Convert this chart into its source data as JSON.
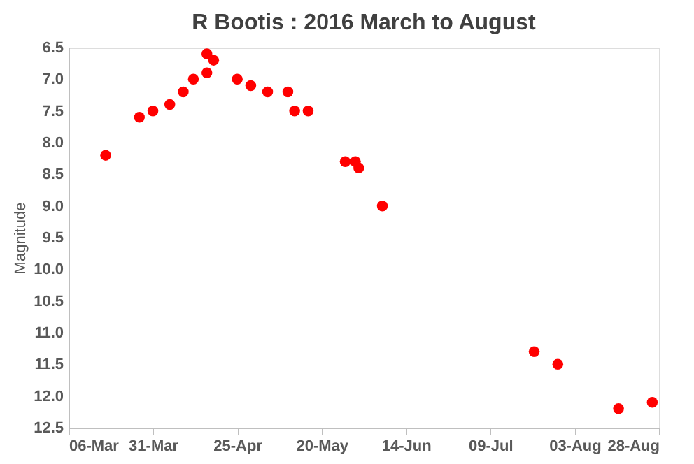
{
  "chart_data": {
    "type": "scatter",
    "title": "R Bootis : 2016 March to August",
    "ylabel": "Magnitude",
    "x": [
      "2016-03-17",
      "2016-03-27",
      "2016-03-31",
      "2016-04-05",
      "2016-04-09",
      "2016-04-12",
      "2016-04-16",
      "2016-04-16",
      "2016-04-18",
      "2016-04-25",
      "2016-04-29",
      "2016-05-04",
      "2016-05-10",
      "2016-05-12",
      "2016-05-16",
      "2016-05-27",
      "2016-05-30",
      "2016-05-31",
      "2016-06-07",
      "2016-07-22",
      "2016-07-29",
      "2016-08-16",
      "2016-08-26"
    ],
    "series": [
      {
        "color": "#ff0000",
        "values": [
          8.2,
          7.6,
          7.5,
          7.4,
          7.2,
          7.0,
          6.6,
          6.9,
          6.7,
          7.0,
          7.1,
          7.2,
          7.2,
          7.5,
          7.5,
          8.3,
          8.3,
          8.4,
          9.0,
          11.3,
          11.5,
          12.2,
          12.1
        ]
      }
    ],
    "xlim": [
      "2016-03-06",
      "2016-08-28"
    ],
    "xticks": [
      {
        "value": "2016-03-06",
        "label": "06-Mar"
      },
      {
        "value": "2016-03-31",
        "label": "31-Mar"
      },
      {
        "value": "2016-04-25",
        "label": "25-Apr"
      },
      {
        "value": "2016-05-20",
        "label": "20-May"
      },
      {
        "value": "2016-06-14",
        "label": "14-Jun"
      },
      {
        "value": "2016-07-09",
        "label": "09-Jul"
      },
      {
        "value": "2016-08-03",
        "label": "03-Aug"
      },
      {
        "value": "2016-08-28",
        "label": "28-Aug"
      }
    ],
    "ylim": [
      12.5,
      6.5
    ],
    "yticks": [
      6.5,
      {
        "value": 7,
        "label": "7.0"
      },
      7.5,
      {
        "value": 8,
        "label": "8.0"
      },
      8.5,
      {
        "value": 9,
        "label": "9.0"
      },
      9.5,
      {
        "value": 10,
        "label": "10.0"
      },
      10.5,
      {
        "value": 11,
        "label": "11.0"
      },
      11.5,
      {
        "value": 12,
        "label": "12.0"
      },
      12.5
    ],
    "grid": false
  }
}
